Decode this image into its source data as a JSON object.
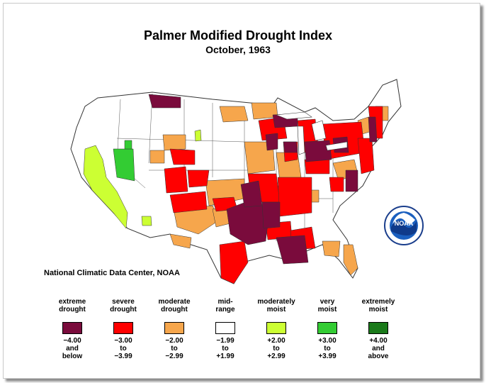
{
  "title": "Palmer Modified Drought Index",
  "subtitle": "October, 1963",
  "credit": "National Climatic Data Center, NOAA",
  "logo_text": "NOAA",
  "colors": {
    "extreme_drought": "#7a0b3c",
    "severe_drought": "#ff0000",
    "moderate_drought": "#f6a64c",
    "mid_range": "#ffffff",
    "moderately_moist": "#ccff33",
    "very_moist": "#33cc33",
    "extremely_moist": "#1a7a1a"
  },
  "legend": [
    {
      "label_1": "extreme",
      "label_2": "drought",
      "range_1": "−4.00",
      "range_2": "and",
      "range_3": "below",
      "color": "#7a0b3c"
    },
    {
      "label_1": "severe",
      "label_2": "drought",
      "range_1": "−3.00",
      "range_2": "to",
      "range_3": "−3.99",
      "color": "#ff0000"
    },
    {
      "label_1": "moderate",
      "label_2": "drought",
      "range_1": "−2.00",
      "range_2": "to",
      "range_3": "−2.99",
      "color": "#f6a64c"
    },
    {
      "label_1": "mid-",
      "label_2": "range",
      "range_1": "−1.99",
      "range_2": "to",
      "range_3": "+1.99",
      "color": "#ffffff"
    },
    {
      "label_1": "moderately",
      "label_2": "moist",
      "range_1": "+2.00",
      "range_2": "to",
      "range_3": "+2.99",
      "color": "#ccff33"
    },
    {
      "label_1": "very",
      "label_2": "moist",
      "range_1": "+3.00",
      "range_2": "to",
      "range_3": "+3.99",
      "color": "#33cc33"
    },
    {
      "label_1": "extremely",
      "label_2": "moist",
      "range_1": "+4.00",
      "range_2": "and",
      "range_3": "above",
      "color": "#1a7a1a"
    }
  ]
}
